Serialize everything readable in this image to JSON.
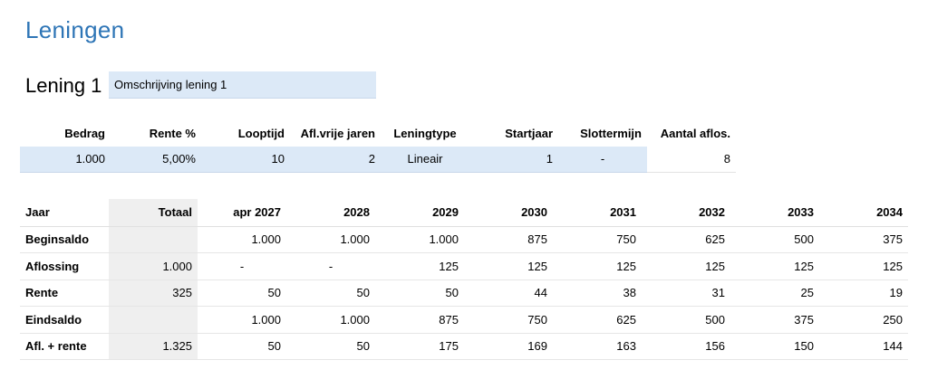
{
  "page": {
    "title": "Leningen"
  },
  "loan": {
    "label": "Lening 1",
    "description": "Omschrijving lening 1"
  },
  "params": {
    "headers": [
      "Bedrag",
      "Rente %",
      "Looptijd",
      "Afl.vrije jaren",
      "Leningtype",
      "Startjaar",
      "Slottermijn",
      "Aantal aflos."
    ],
    "values": [
      "1.000",
      "5,00%",
      "10",
      "2",
      "Lineair",
      "1",
      "-",
      "8"
    ]
  },
  "schedule": {
    "row_header": "Jaar",
    "total_header": "Totaal",
    "years": [
      "apr 2027",
      "2028",
      "2029",
      "2030",
      "2031",
      "2032",
      "2033",
      "2034"
    ],
    "rows": [
      {
        "label": "Beginsaldo",
        "total": "",
        "values": [
          "1.000",
          "1.000",
          "1.000",
          "875",
          "750",
          "625",
          "500",
          "375"
        ]
      },
      {
        "label": "Aflossing",
        "total": "1.000",
        "values": [
          "-",
          "-",
          "125",
          "125",
          "125",
          "125",
          "125",
          "125"
        ]
      },
      {
        "label": "Rente",
        "total": "325",
        "values": [
          "50",
          "50",
          "50",
          "44",
          "38",
          "31",
          "25",
          "19"
        ]
      },
      {
        "label": "Eindsaldo",
        "total": "",
        "values": [
          "1.000",
          "1.000",
          "875",
          "750",
          "625",
          "500",
          "375",
          "250"
        ]
      },
      {
        "label": "Afl. + rente",
        "total": "1.325",
        "values": [
          "50",
          "50",
          "175",
          "169",
          "163",
          "156",
          "150",
          "144"
        ]
      }
    ]
  }
}
